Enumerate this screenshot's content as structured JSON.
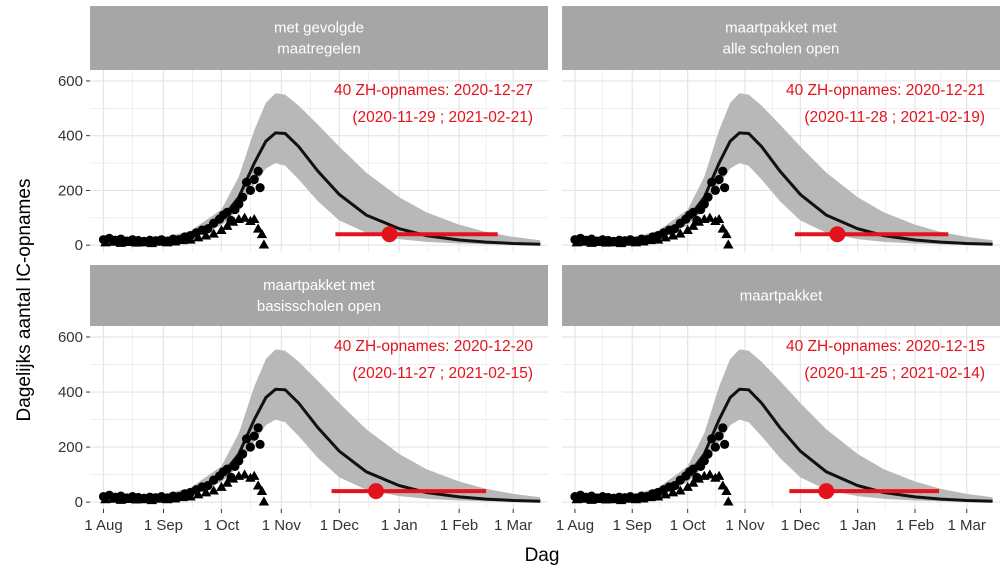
{
  "chart_data": {
    "type": "line",
    "xlabel": "Dag",
    "ylabel": "Dagelijks aantal IC-opnames",
    "xlim": [
      "2020-07-25",
      "2021-03-19"
    ],
    "ylim": [
      -25,
      640
    ],
    "x_ticks": [
      {
        "date": "2020-08-01",
        "label": "1 Aug"
      },
      {
        "date": "2020-09-01",
        "label": "1 Sep"
      },
      {
        "date": "2020-10-01",
        "label": "1 Oct"
      },
      {
        "date": "2020-11-01",
        "label": "1 Nov"
      },
      {
        "date": "2020-12-01",
        "label": "1 Dec"
      },
      {
        "date": "2021-01-01",
        "label": "1 Jan"
      },
      {
        "date": "2021-02-01",
        "label": "1 Feb"
      },
      {
        "date": "2021-03-01",
        "label": "1 Mar"
      }
    ],
    "y_ticks": [
      0,
      200,
      400,
      600
    ],
    "grid": true,
    "colors": {
      "model_line": "#111111",
      "ribbon": "#b8b8b8",
      "observed": "#000000",
      "annotation": "#e4121b",
      "strip": "#a6a6a6",
      "panel": "#ffffff",
      "grid": "#e5e5e5"
    },
    "model_curve": [
      {
        "x": "2020-08-01",
        "y": 15,
        "lo": 10,
        "hi": 20
      },
      {
        "x": "2020-08-15",
        "y": 16,
        "lo": 11,
        "hi": 22
      },
      {
        "x": "2020-09-01",
        "y": 20,
        "lo": 14,
        "hi": 28
      },
      {
        "x": "2020-09-15",
        "y": 38,
        "lo": 28,
        "hi": 52
      },
      {
        "x": "2020-10-01",
        "y": 95,
        "lo": 72,
        "hi": 130
      },
      {
        "x": "2020-10-10",
        "y": 175,
        "lo": 130,
        "hi": 250
      },
      {
        "x": "2020-10-18",
        "y": 300,
        "lo": 220,
        "hi": 420
      },
      {
        "x": "2020-10-24",
        "y": 380,
        "lo": 280,
        "hi": 520
      },
      {
        "x": "2020-10-29",
        "y": 410,
        "lo": 300,
        "hi": 555
      },
      {
        "x": "2020-11-03",
        "y": 408,
        "lo": 290,
        "hi": 550
      },
      {
        "x": "2020-11-10",
        "y": 360,
        "lo": 240,
        "hi": 510
      },
      {
        "x": "2020-11-20",
        "y": 270,
        "lo": 160,
        "hi": 440
      },
      {
        "x": "2020-12-01",
        "y": 185,
        "lo": 90,
        "hi": 360
      },
      {
        "x": "2020-12-15",
        "y": 110,
        "lo": 45,
        "hi": 265
      },
      {
        "x": "2021-01-01",
        "y": 60,
        "lo": 22,
        "hi": 175
      },
      {
        "x": "2021-01-15",
        "y": 35,
        "lo": 12,
        "hi": 120
      },
      {
        "x": "2021-02-01",
        "y": 19,
        "lo": 6,
        "hi": 75
      },
      {
        "x": "2021-02-15",
        "y": 11,
        "lo": 3,
        "hi": 48
      },
      {
        "x": "2021-03-01",
        "y": 6,
        "lo": 2,
        "hi": 30
      },
      {
        "x": "2021-03-15",
        "y": 3,
        "lo": 1,
        "hi": 18
      }
    ],
    "observed_circles": [
      {
        "x": "2020-08-01",
        "y": 20
      },
      {
        "x": "2020-08-04",
        "y": 25
      },
      {
        "x": "2020-08-07",
        "y": 18
      },
      {
        "x": "2020-08-10",
        "y": 22
      },
      {
        "x": "2020-08-13",
        "y": 15
      },
      {
        "x": "2020-08-16",
        "y": 20
      },
      {
        "x": "2020-08-19",
        "y": 17
      },
      {
        "x": "2020-08-22",
        "y": 14
      },
      {
        "x": "2020-08-25",
        "y": 18
      },
      {
        "x": "2020-08-28",
        "y": 16
      },
      {
        "x": "2020-08-31",
        "y": 20
      },
      {
        "x": "2020-09-03",
        "y": 15
      },
      {
        "x": "2020-09-06",
        "y": 22
      },
      {
        "x": "2020-09-09",
        "y": 20
      },
      {
        "x": "2020-09-12",
        "y": 30
      },
      {
        "x": "2020-09-15",
        "y": 35
      },
      {
        "x": "2020-09-18",
        "y": 45
      },
      {
        "x": "2020-09-21",
        "y": 55
      },
      {
        "x": "2020-09-24",
        "y": 60
      },
      {
        "x": "2020-09-27",
        "y": 80
      },
      {
        "x": "2020-09-30",
        "y": 95
      },
      {
        "x": "2020-10-02",
        "y": 110
      },
      {
        "x": "2020-10-04",
        "y": 120
      },
      {
        "x": "2020-10-06",
        "y": 90
      },
      {
        "x": "2020-10-08",
        "y": 130
      },
      {
        "x": "2020-10-10",
        "y": 150
      },
      {
        "x": "2020-10-12",
        "y": 175
      },
      {
        "x": "2020-10-14",
        "y": 230
      },
      {
        "x": "2020-10-16",
        "y": 200
      },
      {
        "x": "2020-10-18",
        "y": 240
      },
      {
        "x": "2020-10-20",
        "y": 270
      },
      {
        "x": "2020-10-21",
        "y": 210
      }
    ],
    "observed_triangles": [
      {
        "x": "2020-08-02",
        "y": 10
      },
      {
        "x": "2020-08-06",
        "y": 12
      },
      {
        "x": "2020-08-10",
        "y": 8
      },
      {
        "x": "2020-08-14",
        "y": 11
      },
      {
        "x": "2020-08-18",
        "y": 9
      },
      {
        "x": "2020-08-22",
        "y": 10
      },
      {
        "x": "2020-08-26",
        "y": 7
      },
      {
        "x": "2020-08-30",
        "y": 12
      },
      {
        "x": "2020-09-03",
        "y": 10
      },
      {
        "x": "2020-09-07",
        "y": 13
      },
      {
        "x": "2020-09-11",
        "y": 18
      },
      {
        "x": "2020-09-15",
        "y": 20
      },
      {
        "x": "2020-09-19",
        "y": 28
      },
      {
        "x": "2020-09-23",
        "y": 35
      },
      {
        "x": "2020-09-27",
        "y": 42
      },
      {
        "x": "2020-10-01",
        "y": 55
      },
      {
        "x": "2020-10-04",
        "y": 70
      },
      {
        "x": "2020-10-07",
        "y": 85
      },
      {
        "x": "2020-10-10",
        "y": 95
      },
      {
        "x": "2020-10-13",
        "y": 100
      },
      {
        "x": "2020-10-16",
        "y": 88
      },
      {
        "x": "2020-10-18",
        "y": 95
      },
      {
        "x": "2020-10-20",
        "y": 60
      },
      {
        "x": "2020-10-22",
        "y": 40
      },
      {
        "x": "2020-10-23",
        "y": 2
      }
    ],
    "panels": [
      {
        "title_lines": [
          "met gevolgde",
          "maatregelen"
        ],
        "annotation_line1": "40 ZH-opnames: 2020-12-27",
        "annotation_line2": "(2020-11-29 ; 2021-02-21)",
        "point": {
          "x": "2020-12-27",
          "y": 40
        },
        "interval": [
          "2020-11-29",
          "2021-02-21"
        ]
      },
      {
        "title_lines": [
          "maartpakket met",
          "alle scholen open"
        ],
        "annotation_line1": "40 ZH-opnames: 2020-12-21",
        "annotation_line2": "(2020-11-28 ; 2021-02-19)",
        "point": {
          "x": "2020-12-21",
          "y": 40
        },
        "interval": [
          "2020-11-28",
          "2021-02-19"
        ]
      },
      {
        "title_lines": [
          "maartpakket met",
          "basisscholen open"
        ],
        "annotation_line1": "40 ZH-opnames: 2020-12-20",
        "annotation_line2": "(2020-11-27 ; 2021-02-15)",
        "point": {
          "x": "2020-12-20",
          "y": 40
        },
        "interval": [
          "2020-11-27",
          "2021-02-15"
        ]
      },
      {
        "title_lines": [
          "maartpakket"
        ],
        "annotation_line1": "40 ZH-opnames: 2020-12-15",
        "annotation_line2": "(2020-11-25 ; 2021-02-14)",
        "point": {
          "x": "2020-12-15",
          "y": 40
        },
        "interval": [
          "2020-11-25",
          "2021-02-14"
        ]
      }
    ]
  }
}
